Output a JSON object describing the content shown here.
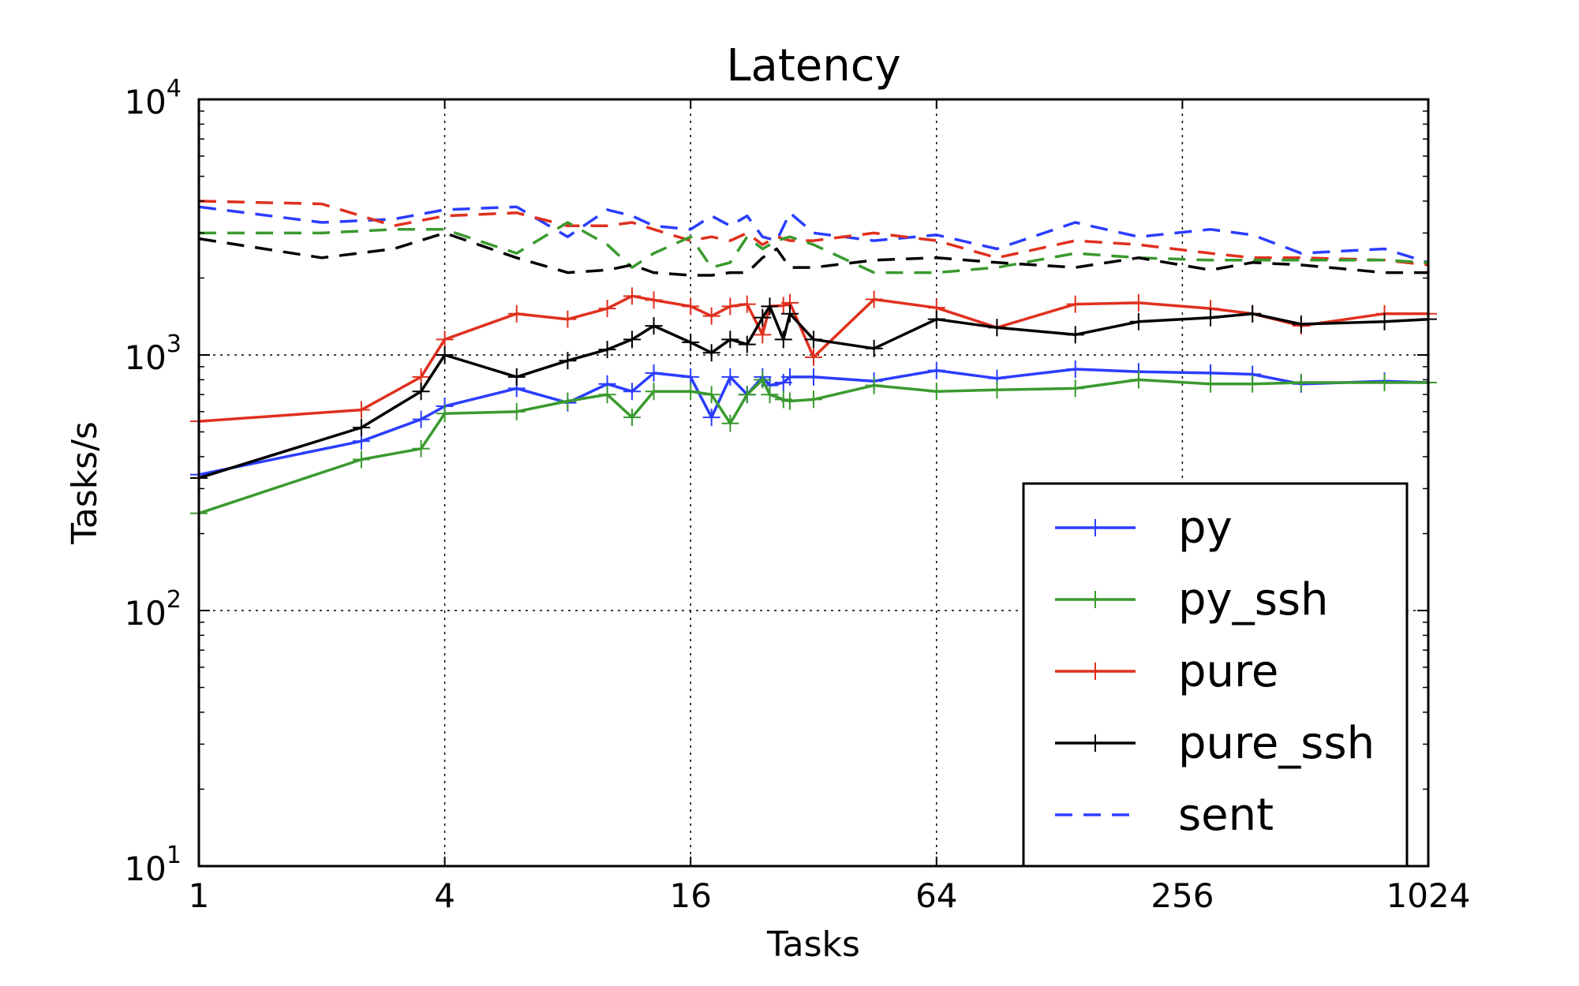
{
  "chart_data": {
    "type": "line",
    "title": "Latency",
    "xlabel": "Tasks",
    "ylabel": "Tasks/s",
    "xscale": "log2",
    "yscale": "log10",
    "xlim": [
      1,
      1024
    ],
    "ylim": [
      10,
      10000
    ],
    "xticks": [
      {
        "value": 1,
        "label": "1"
      },
      {
        "value": 4,
        "label": "4"
      },
      {
        "value": 16,
        "label": "16"
      },
      {
        "value": 64,
        "label": "64"
      },
      {
        "value": 256,
        "label": "256"
      },
      {
        "value": 1024,
        "label": "1024"
      }
    ],
    "yticks": [
      {
        "value": 10,
        "base": "10",
        "exp": "1"
      },
      {
        "value": 100,
        "base": "10",
        "exp": "2"
      },
      {
        "value": 1000,
        "base": "10",
        "exp": "3"
      },
      {
        "value": 10000,
        "base": "10",
        "exp": "4"
      }
    ],
    "grid": true,
    "legend_position": "lower-right",
    "series": [
      {
        "name": "py",
        "color": "#2a3dff",
        "style": "solid",
        "marker": "plus",
        "x": [
          1,
          2.5,
          3.5,
          4,
          6,
          8,
          10,
          11.5,
          13,
          16,
          18,
          20,
          22,
          24,
          25,
          27,
          28,
          32,
          45,
          64,
          90,
          140,
          200,
          300,
          380,
          500,
          800,
          1024
        ],
        "y": [
          340,
          460,
          560,
          630,
          740,
          650,
          770,
          720,
          850,
          820,
          570,
          820,
          700,
          820,
          760,
          780,
          820,
          820,
          790,
          870,
          810,
          880,
          860,
          850,
          840,
          770,
          790,
          780
        ]
      },
      {
        "name": "py_ssh",
        "color": "#3a9a2e",
        "style": "solid",
        "marker": "plus",
        "x": [
          1,
          2.5,
          3.5,
          4,
          6,
          8,
          10,
          11.5,
          13,
          16,
          18,
          20,
          22,
          24,
          25,
          27,
          28,
          32,
          45,
          64,
          90,
          140,
          200,
          300,
          380,
          500,
          800,
          1024
        ],
        "y": [
          240,
          390,
          430,
          590,
          600,
          660,
          700,
          570,
          720,
          720,
          700,
          540,
          700,
          800,
          700,
          670,
          660,
          670,
          760,
          720,
          730,
          740,
          800,
          770,
          770,
          780,
          780,
          780
        ]
      },
      {
        "name": "pure",
        "color": "#e0301e",
        "style": "solid",
        "marker": "plus",
        "x": [
          1,
          2.5,
          3.5,
          4,
          6,
          8,
          10,
          11.5,
          13,
          16,
          18,
          20,
          22,
          24,
          25,
          27,
          28,
          32,
          45,
          64,
          90,
          140,
          200,
          300,
          380,
          500,
          800,
          1024
        ],
        "y": [
          550,
          610,
          820,
          1150,
          1450,
          1380,
          1520,
          1700,
          1640,
          1550,
          1420,
          1550,
          1580,
          1200,
          1550,
          1560,
          1600,
          980,
          1650,
          1530,
          1280,
          1580,
          1600,
          1520,
          1450,
          1300,
          1450,
          1450
        ]
      },
      {
        "name": "pure_ssh",
        "color": "#000000",
        "style": "solid",
        "marker": "plus",
        "x": [
          1,
          2.5,
          3.5,
          4,
          6,
          8,
          10,
          11.5,
          13,
          16,
          18,
          20,
          22,
          24,
          25,
          27,
          28,
          32,
          45,
          64,
          90,
          140,
          200,
          300,
          380,
          500,
          800,
          1024
        ],
        "y": [
          330,
          520,
          720,
          1000,
          820,
          950,
          1050,
          1150,
          1300,
          1120,
          1020,
          1150,
          1100,
          1400,
          1550,
          1150,
          1450,
          1150,
          1060,
          1380,
          1280,
          1200,
          1350,
          1400,
          1450,
          1320,
          1350,
          1380
        ]
      },
      {
        "name": "sent",
        "legend": true,
        "color": "#2a3dff",
        "style": "dashed",
        "marker": "none",
        "x": [
          1,
          2,
          3,
          4,
          6,
          8,
          10,
          11.5,
          13,
          16,
          18,
          20,
          22,
          24,
          26,
          28,
          32,
          45,
          64,
          90,
          140,
          200,
          300,
          380,
          500,
          800,
          1024
        ],
        "y": [
          3800,
          3300,
          3400,
          3700,
          3800,
          2900,
          3700,
          3500,
          3200,
          3100,
          3500,
          3200,
          3500,
          2900,
          2800,
          3600,
          3000,
          2800,
          2950,
          2600,
          3300,
          2900,
          3100,
          2950,
          2500,
          2600,
          2300
        ]
      },
      {
        "name": "sent-pure",
        "legend": false,
        "color": "#e0301e",
        "style": "dashed",
        "marker": "none",
        "x": [
          1,
          2,
          3,
          4,
          6,
          8,
          10,
          11.5,
          13,
          16,
          18,
          20,
          22,
          24,
          26,
          28,
          32,
          45,
          64,
          90,
          140,
          200,
          300,
          380,
          500,
          800,
          1024
        ],
        "y": [
          4000,
          3900,
          3200,
          3500,
          3600,
          3200,
          3200,
          3300,
          3100,
          2800,
          2900,
          2800,
          3000,
          2700,
          2900,
          2800,
          2800,
          3000,
          2800,
          2400,
          2800,
          2700,
          2500,
          2400,
          2400,
          2350,
          2250
        ]
      },
      {
        "name": "sent-py_ssh",
        "legend": false,
        "color": "#3a9a2e",
        "style": "dashed",
        "marker": "none",
        "x": [
          1,
          2,
          3,
          4,
          6,
          8,
          10,
          11.5,
          13,
          16,
          18,
          20,
          22,
          24,
          26,
          28,
          32,
          45,
          64,
          90,
          140,
          200,
          300,
          380,
          500,
          800,
          1024
        ],
        "y": [
          3000,
          3000,
          3100,
          3100,
          2500,
          3300,
          2700,
          2200,
          2500,
          2900,
          2200,
          2300,
          2900,
          2600,
          2800,
          2900,
          2700,
          2100,
          2100,
          2200,
          2500,
          2400,
          2350,
          2350,
          2350,
          2350,
          2300
        ]
      },
      {
        "name": "sent-pure_ssh",
        "legend": false,
        "color": "#000000",
        "style": "dashed",
        "marker": "none",
        "x": [
          1,
          2,
          3,
          4,
          6,
          8,
          10,
          11.5,
          13,
          16,
          18,
          20,
          22,
          24,
          26,
          28,
          32,
          45,
          64,
          90,
          140,
          200,
          300,
          380,
          500,
          800,
          1024
        ],
        "y": [
          2850,
          2400,
          2600,
          3000,
          2400,
          2100,
          2150,
          2250,
          2100,
          2050,
          2050,
          2100,
          2100,
          2400,
          2600,
          2200,
          2200,
          2350,
          2400,
          2300,
          2200,
          2400,
          2150,
          2300,
          2250,
          2100,
          2100
        ]
      }
    ]
  }
}
